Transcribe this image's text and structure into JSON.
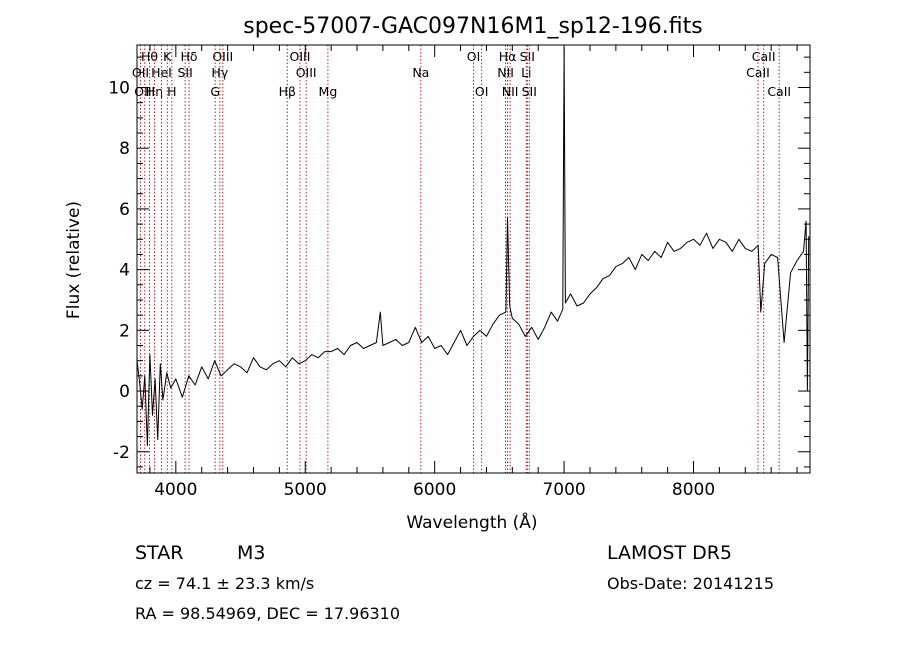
{
  "chart_data": {
    "type": "line",
    "title": "spec-57007-GAC097N16M1_sp12-196.fits",
    "xlabel": "Wavelength (Å)",
    "ylabel": "Flux (relative)",
    "xlim": [
      3700,
      8900
    ],
    "ylim": [
      -2.7,
      11.4
    ],
    "xticks": [
      4000,
      5000,
      6000,
      7000,
      8000
    ],
    "yticks": [
      -2,
      0,
      2,
      4,
      6,
      8,
      10
    ],
    "grid": false,
    "series": [
      {
        "x": [
          3700,
          3720,
          3740,
          3760,
          3780,
          3800,
          3820,
          3840,
          3860,
          3880,
          3900,
          3930,
          3960,
          4000,
          4050,
          4100,
          4150,
          4200,
          4250,
          4300,
          4350,
          4400,
          4450,
          4500,
          4550,
          4600,
          4650,
          4700,
          4750,
          4800,
          4850,
          4900,
          4950,
          5000,
          5050,
          5100,
          5150,
          5200,
          5250,
          5300,
          5350,
          5400,
          5450,
          5500,
          5550,
          5580,
          5600,
          5650,
          5700,
          5750,
          5800,
          5850,
          5900,
          5950,
          6000,
          6050,
          6100,
          6150,
          6200,
          6250,
          6300,
          6350,
          6400,
          6450,
          6500,
          6550,
          6563,
          6580,
          6600,
          6650,
          6700,
          6750,
          6800,
          6850,
          6900,
          6950,
          6990,
          7000,
          7010,
          7050,
          7100,
          7150,
          7200,
          7250,
          7300,
          7350,
          7400,
          7450,
          7500,
          7550,
          7600,
          7650,
          7700,
          7750,
          7800,
          7850,
          7900,
          7950,
          8000,
          8050,
          8100,
          8150,
          8200,
          8250,
          8300,
          8350,
          8400,
          8450,
          8500,
          8520,
          8550,
          8600,
          8650,
          8700,
          8750,
          8800,
          8850,
          8870,
          8880,
          8890
        ],
        "y": [
          1.0,
          0.3,
          -0.6,
          0.5,
          -1.8,
          1.2,
          -0.8,
          0.4,
          -1.6,
          0.9,
          -0.3,
          0.6,
          0.1,
          0.4,
          -0.2,
          0.5,
          0.2,
          0.8,
          0.4,
          1.0,
          0.5,
          0.7,
          0.9,
          0.8,
          0.6,
          1.1,
          0.8,
          0.7,
          0.9,
          1.0,
          0.8,
          1.1,
          0.9,
          1.0,
          1.2,
          1.1,
          1.3,
          1.3,
          1.4,
          1.2,
          1.5,
          1.6,
          1.4,
          1.5,
          1.6,
          2.6,
          1.5,
          1.6,
          1.7,
          1.5,
          1.6,
          2.1,
          1.6,
          1.8,
          1.4,
          1.5,
          1.2,
          1.6,
          2.0,
          1.5,
          1.8,
          2.0,
          1.8,
          2.2,
          2.5,
          2.6,
          5.7,
          2.8,
          2.4,
          2.2,
          1.8,
          2.1,
          1.7,
          2.1,
          2.6,
          2.3,
          2.7,
          11.3,
          2.9,
          3.2,
          2.8,
          2.9,
          3.2,
          3.4,
          3.7,
          3.8,
          4.1,
          4.2,
          4.4,
          4.0,
          4.5,
          4.3,
          4.6,
          4.4,
          4.9,
          4.6,
          4.7,
          4.9,
          5.0,
          4.8,
          5.2,
          4.7,
          5.0,
          4.9,
          4.6,
          5.0,
          4.7,
          4.6,
          4.8,
          2.6,
          4.2,
          4.5,
          4.4,
          1.6,
          3.9,
          4.3,
          4.6,
          5.6,
          0.0,
          5.1
        ]
      }
    ],
    "spectral_lines": [
      {
        "label": "Hθ",
        "x": 3797,
        "row": 1
      },
      {
        "label": "OII",
        "x": 3727,
        "row": 2
      },
      {
        "label": "OIII",
        "x": 3760,
        "row": 3
      },
      {
        "label": "Hη",
        "x": 3835,
        "row": 3
      },
      {
        "label": "K",
        "x": 3934,
        "row": 1
      },
      {
        "label": "HeI",
        "x": 3889,
        "row": 2
      },
      {
        "label": "H",
        "x": 3969,
        "row": 3
      },
      {
        "label": "Hδ",
        "x": 4102,
        "row": 1
      },
      {
        "label": "SII",
        "x": 4072,
        "row": 2
      },
      {
        "label": "OIII",
        "x": 4363,
        "row": 1
      },
      {
        "label": "Hγ",
        "x": 4340,
        "row": 2
      },
      {
        "label": "G",
        "x": 4304,
        "row": 3
      },
      {
        "label": "OIII",
        "x": 4959,
        "row": 1
      },
      {
        "label": "OIII",
        "x": 5007,
        "row": 2
      },
      {
        "label": "Hβ",
        "x": 4861,
        "row": 3
      },
      {
        "label": "Mg",
        "x": 5175,
        "row": 3
      },
      {
        "label": "Na",
        "x": 5893,
        "row": 2
      },
      {
        "label": "OI",
        "x": 6300,
        "row": 1
      },
      {
        "label": "OI",
        "x": 6363,
        "row": 3
      },
      {
        "label": "Hα",
        "x": 6563,
        "row": 1
      },
      {
        "label": "NII",
        "x": 6548,
        "row": 2
      },
      {
        "label": "NII",
        "x": 6583,
        "row": 3
      },
      {
        "label": "SII",
        "x": 6716,
        "row": 1
      },
      {
        "label": "Li",
        "x": 6708,
        "row": 2
      },
      {
        "label": "SII",
        "x": 6731,
        "row": 3
      },
      {
        "label": "CaII",
        "x": 8542,
        "row": 1
      },
      {
        "label": "CaII",
        "x": 8498,
        "row": 2
      },
      {
        "label": "CaII",
        "x": 8662,
        "row": 3
      }
    ]
  },
  "info": {
    "class_label": "STAR",
    "subclass": "M3",
    "survey": "LAMOST DR5",
    "cz": "cz = 74.1 ± 23.3 km/s",
    "obs_date": "Obs-Date: 20141215",
    "coords": "RA =  98.54969, DEC =  17.96310"
  },
  "colors": {
    "spectrum": "#000000",
    "line_markers": "#b22222",
    "axes": "#000000",
    "background": "#ffffff"
  }
}
